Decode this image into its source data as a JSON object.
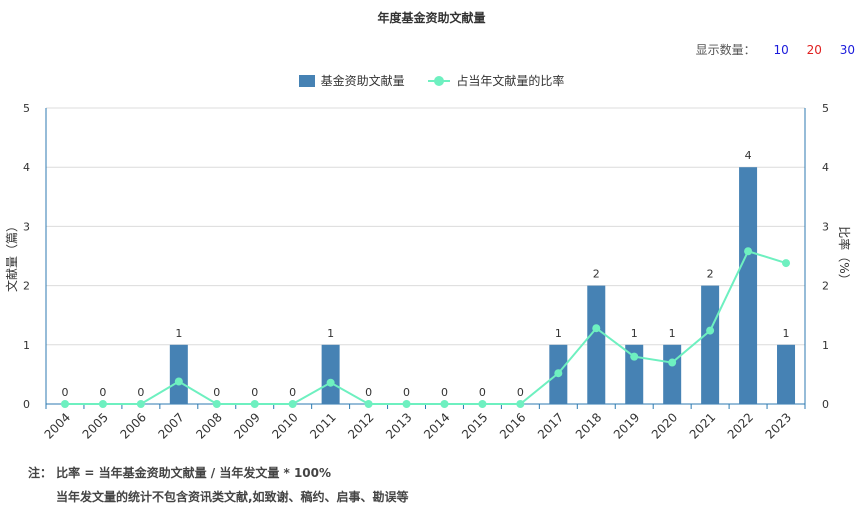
{
  "title": "年度基金资助文献量",
  "display_count": {
    "label": "显示数量：",
    "options": [
      {
        "label": "10",
        "color": "#1a1adb"
      },
      {
        "label": "20",
        "color": "#e02020"
      },
      {
        "label": "30",
        "color": "#1a1adb"
      }
    ]
  },
  "legend": {
    "bar": "基金资助文献量",
    "line": "占当年文献量的比率"
  },
  "notes": {
    "line1": "注：  比率 = 当年基金资助文献量 / 当年发文量 * 100%",
    "line2": "当年发文量的统计不包含资讯类文献,如致谢、稿约、启事、勘误等"
  },
  "colors": {
    "bar": "#4682b4",
    "line": "#6ef0c0",
    "axis": "#2c7ab0"
  },
  "chart_data": {
    "type": "bar",
    "categories": [
      "2004",
      "2005",
      "2006",
      "2007",
      "2008",
      "2009",
      "2010",
      "2011",
      "2012",
      "2013",
      "2014",
      "2015",
      "2016",
      "2017",
      "2018",
      "2019",
      "2020",
      "2021",
      "2022",
      "2023"
    ],
    "series": [
      {
        "name": "基金资助文献量",
        "type": "bar",
        "axis": "left",
        "values": [
          0,
          0,
          0,
          1,
          0,
          0,
          0,
          1,
          0,
          0,
          0,
          0,
          0,
          1,
          2,
          1,
          1,
          2,
          4,
          1
        ]
      },
      {
        "name": "占当年文献量的比率",
        "type": "line",
        "axis": "right",
        "values": [
          0,
          0,
          0,
          0.38,
          0,
          0,
          0,
          0.36,
          0,
          0,
          0,
          0,
          0,
          0.52,
          1.28,
          0.8,
          0.7,
          1.24,
          2.58,
          2.38
        ]
      }
    ],
    "ylabel": "文献量（篇）",
    "y2label": "比率（%）",
    "ylim": [
      0,
      5
    ],
    "y2lim": [
      0,
      5
    ],
    "yticks": [
      0,
      1,
      2,
      3,
      4,
      5
    ],
    "y2ticks": [
      0,
      1,
      2,
      3,
      4,
      5
    ],
    "grid": true,
    "legend_position": "top-center"
  }
}
